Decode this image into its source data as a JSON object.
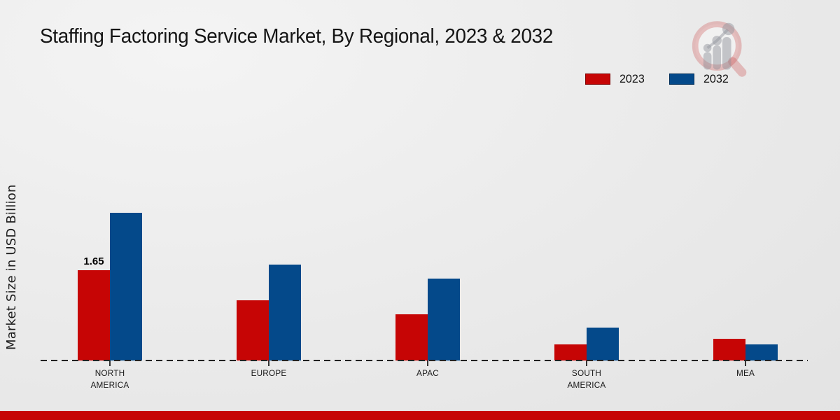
{
  "page": {
    "title": "Staffing Factoring Service Market, By Regional, 2023 & 2032",
    "footer_color": "#c60505"
  },
  "legend": {
    "items": [
      {
        "label": "2023",
        "color": "#c60505"
      },
      {
        "label": "2032",
        "color": "#04498a"
      }
    ]
  },
  "chart_data": {
    "type": "bar",
    "title": "Staffing Factoring Service Market, By Regional, 2023 & 2032",
    "xlabel": "",
    "ylabel": "Market Size in USD Billion",
    "categories": [
      "NORTH AMERICA",
      "EUROPE",
      "APAC",
      "SOUTH AMERICA",
      "MEA"
    ],
    "series": [
      {
        "name": "2023",
        "color": "#c60505",
        "values": [
          1.65,
          1.1,
          0.85,
          0.3,
          0.4
        ]
      },
      {
        "name": "2032",
        "color": "#04498a",
        "values": [
          2.7,
          1.75,
          1.5,
          0.6,
          0.3
        ]
      }
    ],
    "data_labels": [
      {
        "series": "2023",
        "category": "NORTH AMERICA",
        "text": "1.65"
      }
    ],
    "ylim": [
      0,
      3
    ],
    "grid": false,
    "baseline_style": "dashed",
    "legend_position": "top-right"
  }
}
